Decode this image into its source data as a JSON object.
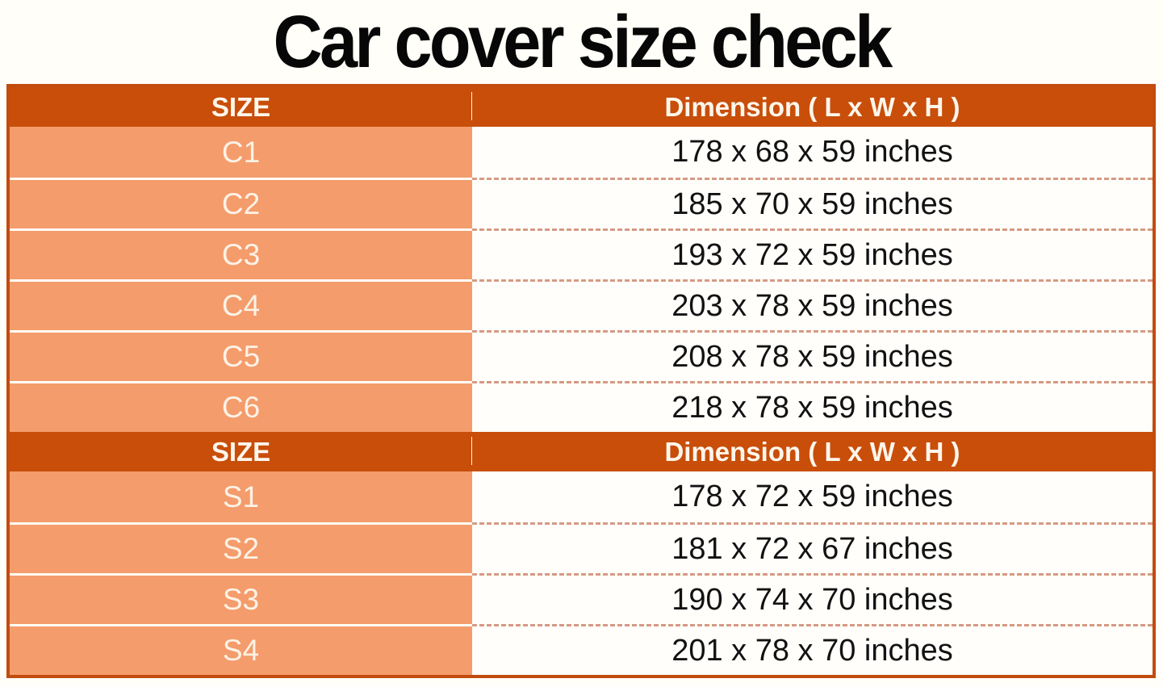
{
  "title": "Car cover size check",
  "chart_data": [
    {
      "type": "table",
      "columns": [
        "SIZE",
        "Dimension ( L x W x H )"
      ],
      "rows": [
        [
          "C1",
          "178 x 68 x 59 inches"
        ],
        [
          "C2",
          "185 x 70 x 59 inches"
        ],
        [
          "C3",
          "193 x 72 x 59 inches"
        ],
        [
          "C4",
          "203 x 78 x 59 inches"
        ],
        [
          "C5",
          "208 x 78 x 59 inches"
        ],
        [
          "C6",
          "218 x 78 x 59 inches"
        ]
      ]
    },
    {
      "type": "table",
      "columns": [
        "SIZE",
        "Dimension ( L x W x H )"
      ],
      "rows": [
        [
          "S1",
          "178 x 72 x 59 inches"
        ],
        [
          "S2",
          "181 x 72 x 67 inches"
        ],
        [
          "S3",
          "190 x 74 x 70 inches"
        ],
        [
          "S4",
          "201 x 78 x 70 inches"
        ]
      ]
    }
  ],
  "colors": {
    "header_bg": "#c84e0a",
    "label_bg": "#f49c6b",
    "border": "#c14c0e",
    "dash": "#d69a82",
    "title_text": "#070707"
  }
}
